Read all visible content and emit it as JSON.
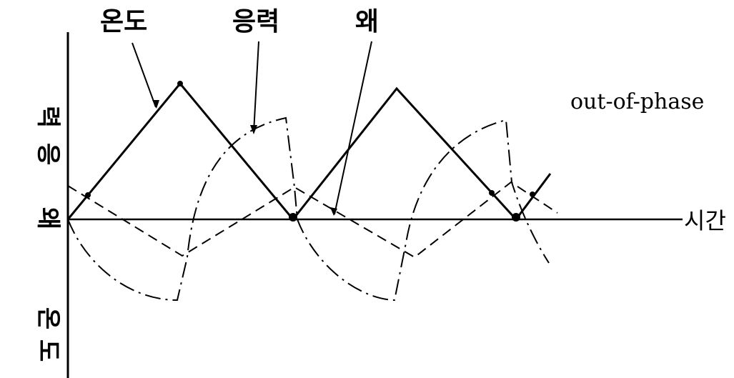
{
  "labels": {
    "temperature": "온도",
    "stress": "응력",
    "strain": "왜",
    "phase": "out-of-phase",
    "time": "시간"
  },
  "y_axis": {
    "top_chars": [
      "응",
      "력"
    ],
    "mid_char": "왜",
    "bottom_chars": [
      "온",
      "도"
    ]
  },
  "colors": {
    "line": "#000000",
    "background": "#ffffff"
  },
  "series_styles": {
    "temperature": "solid",
    "stress": "dash-dot",
    "strain": "dashed"
  }
}
